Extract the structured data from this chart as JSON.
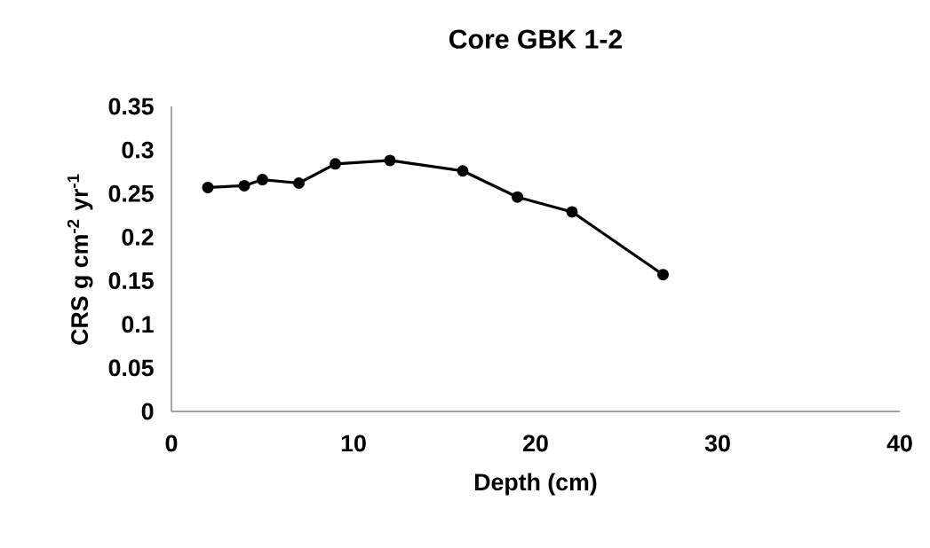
{
  "chart_data": {
    "type": "line",
    "title": "Core GBK 1-2",
    "xlabel": "Depth (cm)",
    "ylabel": "CRS g cm$^{-2}$ yr$^{-1}$",
    "x": [
      2,
      4,
      5,
      7,
      9,
      12,
      16,
      19,
      22,
      27
    ],
    "series": [
      {
        "color": "#000000",
        "values": [
          0.257,
          0.259,
          0.266,
          0.262,
          0.284,
          0.288,
          0.276,
          0.246,
          0.229,
          0.157
        ]
      }
    ],
    "xlim": [
      0,
      40
    ],
    "xticks": [
      0,
      10,
      20,
      30,
      40
    ],
    "ylim": [
      0,
      0.35
    ],
    "yticks": [
      0,
      0.05,
      0.1,
      0.15,
      0.2,
      0.25,
      0.3,
      0.35
    ],
    "grid": false,
    "marker": "circle",
    "line_style": "solid"
  }
}
